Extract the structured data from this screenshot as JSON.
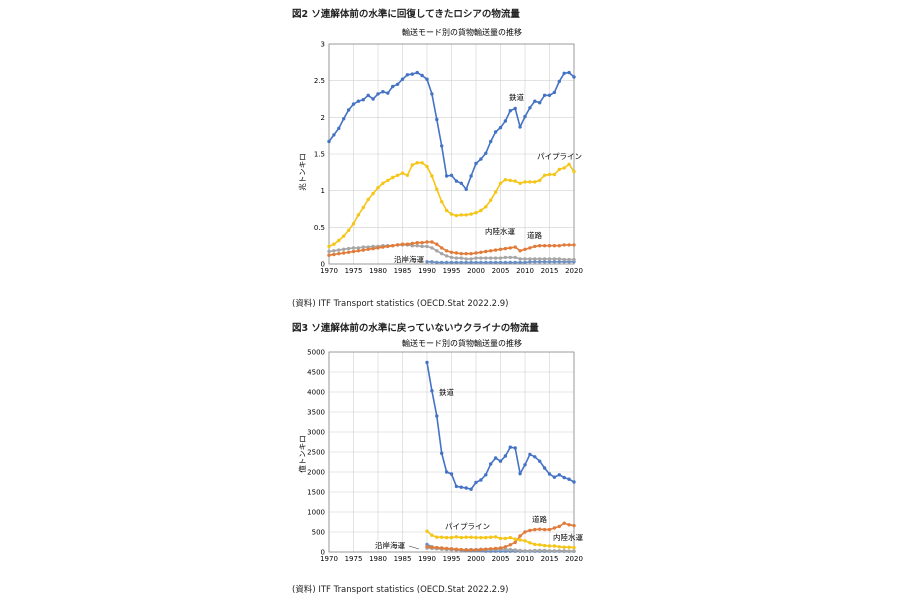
{
  "figure2": {
    "title": "図2 ソ連解体前の水準に回復してきたロシアの物流量",
    "source": "(資料) ITF Transport statistics (OECD.Stat 2022.2.9)"
  },
  "figure3": {
    "title": "図3 ソ連解体前の水準に戻っていないウクライナの物流量",
    "source": "(資料) ITF Transport statistics (OECD.Stat 2022.2.9)"
  },
  "colors": {
    "rail": "#4472c4",
    "pipeline": "#f5c518",
    "road": "#e07b39",
    "inland": "#a6a6a6",
    "coastal": "#6b8fc4",
    "grid": "#d0d0d0"
  },
  "chart_data": [
    {
      "type": "line",
      "title": "輸送モード別の貨物輸送量の推移",
      "ylabel": "兆トンキロ",
      "xlabel": "",
      "ylim": [
        0,
        3
      ],
      "yticks": [
        0,
        0.5,
        1,
        1.5,
        2,
        2.5,
        3
      ],
      "ytick_labels": [
        "0",
        "0.5",
        "1",
        "1.5",
        "2",
        "2.5",
        "3"
      ],
      "xlim": [
        1970,
        2020
      ],
      "xticks": [
        1970,
        1975,
        1980,
        1985,
        1990,
        1995,
        2000,
        2005,
        2010,
        2015,
        2020
      ],
      "grid": true,
      "series": [
        {
          "name": "鉄道",
          "key": "rail",
          "x_start": 1970,
          "values": [
            1.67,
            1.76,
            1.85,
            1.98,
            2.1,
            2.18,
            2.22,
            2.24,
            2.3,
            2.25,
            2.32,
            2.35,
            2.33,
            2.42,
            2.45,
            2.52,
            2.58,
            2.59,
            2.61,
            2.57,
            2.52,
            2.32,
            1.97,
            1.61,
            1.2,
            1.21,
            1.13,
            1.1,
            1.02,
            1.2,
            1.37,
            1.43,
            1.51,
            1.67,
            1.8,
            1.86,
            1.95,
            2.09,
            2.12,
            1.87,
            2.01,
            2.13,
            2.22,
            2.2,
            2.3,
            2.3,
            2.34,
            2.49,
            2.6,
            2.61,
            2.55
          ]
        },
        {
          "name": "パイプライン",
          "key": "pipeline",
          "x_start": 1970,
          "values": [
            0.24,
            0.27,
            0.32,
            0.38,
            0.46,
            0.55,
            0.67,
            0.77,
            0.88,
            0.96,
            1.04,
            1.1,
            1.14,
            1.18,
            1.21,
            1.24,
            1.21,
            1.35,
            1.38,
            1.38,
            1.33,
            1.2,
            1.02,
            0.85,
            0.73,
            0.68,
            0.66,
            0.67,
            0.67,
            0.68,
            0.7,
            0.73,
            0.78,
            0.87,
            0.98,
            1.1,
            1.15,
            1.14,
            1.13,
            1.1,
            1.12,
            1.12,
            1.12,
            1.14,
            1.21,
            1.22,
            1.22,
            1.29,
            1.31,
            1.36,
            1.26
          ]
        },
        {
          "name": "道路",
          "key": "road",
          "x_start": 1970,
          "values": [
            0.12,
            0.13,
            0.14,
            0.15,
            0.16,
            0.17,
            0.18,
            0.19,
            0.2,
            0.21,
            0.22,
            0.23,
            0.24,
            0.25,
            0.26,
            0.27,
            0.27,
            0.28,
            0.29,
            0.29,
            0.3,
            0.3,
            0.27,
            0.22,
            0.18,
            0.16,
            0.15,
            0.14,
            0.14,
            0.14,
            0.15,
            0.16,
            0.17,
            0.18,
            0.19,
            0.2,
            0.21,
            0.22,
            0.23,
            0.18,
            0.2,
            0.22,
            0.24,
            0.25,
            0.25,
            0.25,
            0.25,
            0.25,
            0.26,
            0.26,
            0.26
          ]
        },
        {
          "name": "内陸水運",
          "key": "inland",
          "x_start": 1970,
          "values": [
            0.17,
            0.18,
            0.19,
            0.2,
            0.21,
            0.22,
            0.22,
            0.23,
            0.23,
            0.24,
            0.24,
            0.25,
            0.25,
            0.25,
            0.26,
            0.26,
            0.26,
            0.25,
            0.25,
            0.24,
            0.24,
            0.22,
            0.18,
            0.14,
            0.11,
            0.09,
            0.08,
            0.08,
            0.07,
            0.07,
            0.08,
            0.08,
            0.08,
            0.08,
            0.08,
            0.08,
            0.09,
            0.09,
            0.09,
            0.07,
            0.07,
            0.07,
            0.07,
            0.07,
            0.07,
            0.07,
            0.07,
            0.07,
            0.06,
            0.06,
            0.06
          ]
        },
        {
          "name": "沿岸海運",
          "key": "coastal",
          "x_start": 1990,
          "values": [
            0.03,
            0.03,
            0.02,
            0.02,
            0.02,
            0.02,
            0.02,
            0.02,
            0.02,
            0.02,
            0.02,
            0.02,
            0.02,
            0.02,
            0.02,
            0.02,
            0.02,
            0.02,
            0.02,
            0.02,
            0.02,
            0.03,
            0.03,
            0.03,
            0.03,
            0.03,
            0.03,
            0.03,
            0.03,
            0.03,
            0.03
          ]
        }
      ],
      "labels": {
        "rail": "鉄道",
        "pipeline": "パイプライン",
        "road": "道路",
        "inland": "内陸水運",
        "coastal": "沿岸海運"
      }
    },
    {
      "type": "line",
      "title": "輸送モード別の貨物輸送量の推移",
      "ylabel": "億トンキロ",
      "xlabel": "",
      "ylim": [
        0,
        5000
      ],
      "yticks": [
        0,
        500,
        1000,
        1500,
        2000,
        2500,
        3000,
        3500,
        4000,
        4500,
        5000
      ],
      "ytick_labels": [
        "0",
        "500",
        "1000",
        "1500",
        "2000",
        "2500",
        "3000",
        "3500",
        "4000",
        "4500",
        "5000"
      ],
      "xlim": [
        1970,
        2020
      ],
      "xticks": [
        1970,
        1975,
        1980,
        1985,
        1990,
        1995,
        2000,
        2005,
        2010,
        2015,
        2020
      ],
      "grid": true,
      "series": [
        {
          "name": "鉄道",
          "key": "rail",
          "x_start": 1990,
          "values": [
            4740,
            4030,
            3400,
            2470,
            2000,
            1950,
            1640,
            1620,
            1600,
            1570,
            1740,
            1800,
            1930,
            2200,
            2350,
            2270,
            2400,
            2620,
            2600,
            1960,
            2180,
            2440,
            2380,
            2270,
            2100,
            1950,
            1870,
            1930,
            1860,
            1820,
            1750
          ]
        },
        {
          "name": "パイプライン",
          "key": "pipeline",
          "x_start": 1990,
          "values": [
            520,
            420,
            370,
            370,
            360,
            360,
            380,
            360,
            370,
            370,
            360,
            360,
            360,
            370,
            380,
            340,
            340,
            360,
            320,
            300,
            280,
            230,
            190,
            180,
            160,
            150,
            150,
            130,
            120,
            120,
            110
          ]
        },
        {
          "name": "道路",
          "key": "road",
          "x_start": 1990,
          "values": [
            130,
            120,
            110,
            100,
            90,
            80,
            70,
            60,
            50,
            50,
            50,
            60,
            70,
            80,
            90,
            100,
            130,
            180,
            240,
            400,
            500,
            540,
            560,
            570,
            560,
            560,
            600,
            640,
            720,
            680,
            660
          ]
        },
        {
          "name": "内陸水運",
          "key": "inland",
          "x_start": 1990,
          "values": [
            100,
            90,
            80,
            70,
            60,
            60,
            50,
            50,
            60,
            60,
            60,
            70,
            70,
            70,
            70,
            70,
            70,
            60,
            50,
            40,
            30,
            30,
            40,
            40,
            40,
            30,
            30,
            30,
            30,
            20,
            20
          ]
        },
        {
          "name": "沿岸海運",
          "key": "coastal",
          "x_start": 1990,
          "values": [
            190,
            130,
            100,
            80,
            70,
            60,
            50,
            40,
            30,
            30,
            30,
            30,
            20,
            20,
            20,
            20,
            20,
            20,
            20,
            20,
            20,
            20,
            20,
            20,
            20,
            20,
            20,
            20,
            20,
            20,
            20
          ]
        }
      ],
      "labels": {
        "rail": "鉄道",
        "pipeline": "パイプライン",
        "road": "道路",
        "inland": "内陸水運",
        "coastal": "沿岸海運"
      }
    }
  ]
}
